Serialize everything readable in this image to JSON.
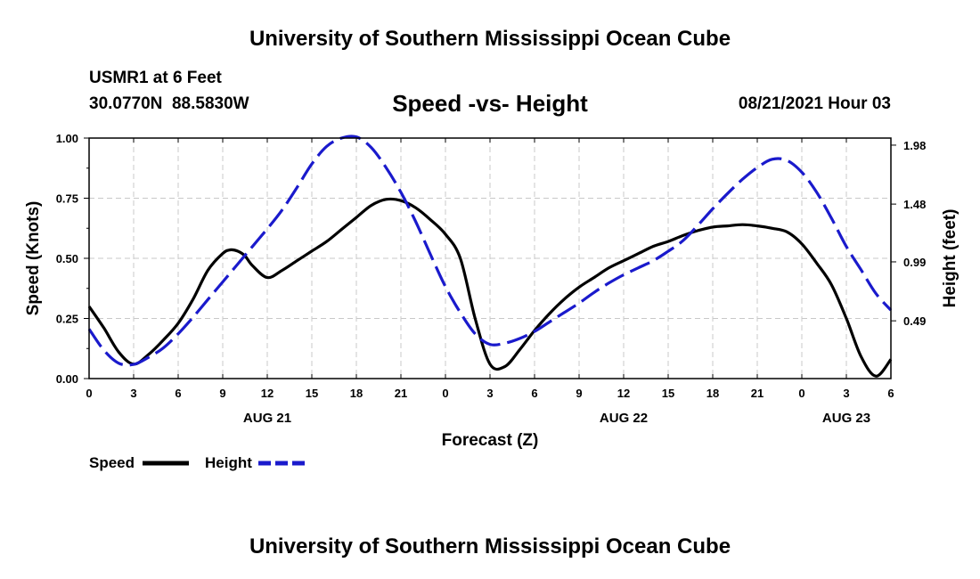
{
  "header": {
    "title": "University of Southern Mississippi Ocean Cube",
    "station": "USMR1 at 6 Feet",
    "coords": "30.0770N  88.5830W",
    "datetime": "08/21/2021 Hour 03"
  },
  "footer": {
    "title": "University of Southern Mississippi Ocean Cube"
  },
  "colors": {
    "speed": "#000000",
    "height": "#1a1acc",
    "grid": "#c8c8c8"
  },
  "chart_data": {
    "type": "line",
    "title": "Speed -vs- Height",
    "xlabel": "Forecast (Z)",
    "ylabel": "Speed (Knots)",
    "y2label": "Height (feet)",
    "xlim": [
      0,
      54
    ],
    "ylim": [
      0,
      1.0
    ],
    "y2lim": [
      0,
      2.04
    ],
    "x_ticks": [
      0,
      3,
      6,
      9,
      12,
      15,
      18,
      21,
      24,
      27,
      30,
      33,
      36,
      39,
      42,
      45,
      48,
      51,
      54
    ],
    "x_tick_labels": [
      "0",
      "3",
      "6",
      "9",
      "12",
      "15",
      "18",
      "21",
      "0",
      "3",
      "6",
      "9",
      "12",
      "15",
      "18",
      "21",
      "0",
      "3",
      "6"
    ],
    "date_labels": [
      {
        "x": 12,
        "text": "AUG 21"
      },
      {
        "x": 36,
        "text": "AUG 22"
      },
      {
        "x": 51,
        "text": "AUG 23"
      }
    ],
    "y_ticks": [
      0,
      0.25,
      0.5,
      0.75,
      1.0
    ],
    "y_tick_labels": [
      "0.00",
      "0.25",
      "0.50",
      "0.75",
      "1.00"
    ],
    "y2_ticks": [
      0.49,
      0.99,
      1.48,
      1.98
    ],
    "y2_tick_labels": [
      "0.49",
      "0.99",
      "1.48",
      "1.98"
    ],
    "grid": true,
    "legend": {
      "placement": "bottom-left",
      "speed_label": "Speed",
      "height_label": "Height"
    },
    "series": [
      {
        "name": "Speed",
        "axis": "left",
        "style": "solid",
        "x": [
          0,
          1,
          2,
          3,
          4,
          5,
          6,
          7,
          8,
          9,
          9.5,
          10,
          10.5,
          11,
          12,
          13,
          14,
          15,
          16,
          17,
          18,
          19,
          20,
          21,
          22,
          23,
          24,
          25,
          26,
          27,
          28,
          29,
          30,
          31,
          32,
          33,
          34,
          35,
          36,
          37,
          38,
          39,
          40,
          41,
          42,
          43,
          44,
          45,
          46,
          47,
          48,
          49,
          50,
          51,
          52,
          53,
          54
        ],
        "values": [
          0.3,
          0.21,
          0.11,
          0.06,
          0.1,
          0.16,
          0.23,
          0.33,
          0.45,
          0.52,
          0.535,
          0.53,
          0.51,
          0.47,
          0.42,
          0.45,
          0.49,
          0.53,
          0.57,
          0.62,
          0.67,
          0.72,
          0.745,
          0.74,
          0.71,
          0.66,
          0.6,
          0.5,
          0.25,
          0.06,
          0.05,
          0.12,
          0.2,
          0.27,
          0.33,
          0.38,
          0.42,
          0.46,
          0.49,
          0.52,
          0.55,
          0.57,
          0.595,
          0.615,
          0.63,
          0.635,
          0.64,
          0.635,
          0.625,
          0.61,
          0.56,
          0.48,
          0.39,
          0.25,
          0.09,
          0.01,
          0.08
        ]
      },
      {
        "name": "Height",
        "axis": "right",
        "style": "dashed",
        "x": [
          0,
          1,
          2,
          3,
          4,
          5,
          6,
          7,
          8,
          9,
          10,
          11,
          12,
          13,
          14,
          15,
          16,
          17,
          18,
          19,
          20,
          21,
          22,
          23,
          24,
          25,
          26,
          27,
          28,
          29,
          30,
          31,
          32,
          33,
          34,
          35,
          36,
          37,
          38,
          39,
          40,
          41,
          42,
          43,
          44,
          45,
          46,
          47,
          48,
          49,
          50,
          51,
          52,
          53,
          54
        ],
        "values": [
          0.42,
          0.24,
          0.13,
          0.12,
          0.18,
          0.26,
          0.38,
          0.52,
          0.67,
          0.82,
          0.97,
          1.12,
          1.27,
          1.43,
          1.62,
          1.82,
          1.97,
          2.04,
          2.05,
          1.96,
          1.79,
          1.58,
          1.33,
          1.05,
          0.78,
          0.56,
          0.38,
          0.29,
          0.3,
          0.34,
          0.4,
          0.48,
          0.56,
          0.64,
          0.73,
          0.81,
          0.88,
          0.94,
          1.0,
          1.08,
          1.17,
          1.3,
          1.44,
          1.57,
          1.69,
          1.79,
          1.86,
          1.85,
          1.75,
          1.58,
          1.36,
          1.12,
          0.92,
          0.72,
          0.58
        ]
      }
    ]
  }
}
